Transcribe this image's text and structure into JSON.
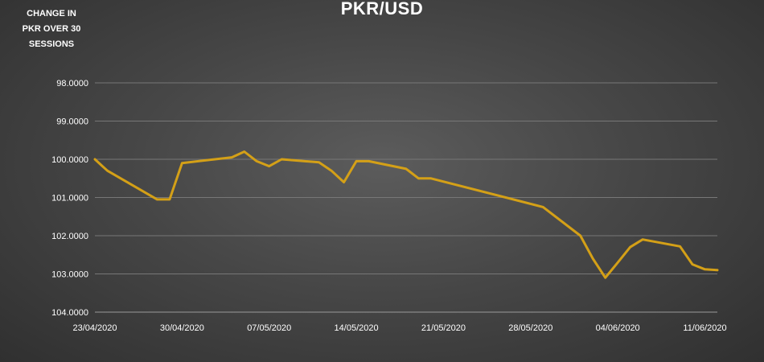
{
  "chart_data": {
    "type": "line",
    "title": "PKR/USD",
    "ylabel": "CHANGE IN\nPKR OVER 30\nSESSIONS",
    "xlabel": "",
    "y_reversed": true,
    "ylim": [
      98.0,
      104.0
    ],
    "y_ticks": [
      "98.0000",
      "99.0000",
      "100.0000",
      "101.0000",
      "102.0000",
      "103.0000",
      "104.0000"
    ],
    "x_range": [
      "2020-04-23",
      "2020-06-12"
    ],
    "x_ticks": [
      {
        "date": "2020-04-23",
        "label": "23/04/2020"
      },
      {
        "date": "2020-04-30",
        "label": "30/04/2020"
      },
      {
        "date": "2020-05-07",
        "label": "07/05/2020"
      },
      {
        "date": "2020-05-14",
        "label": "14/05/2020"
      },
      {
        "date": "2020-05-21",
        "label": "21/05/2020"
      },
      {
        "date": "2020-05-28",
        "label": "28/05/2020"
      },
      {
        "date": "2020-06-04",
        "label": "04/06/2020"
      },
      {
        "date": "2020-06-11",
        "label": "11/06/2020"
      }
    ],
    "grid": "horizontal",
    "series": [
      {
        "color": "#d4a017",
        "points": [
          {
            "x": "2020-04-23",
            "y": 100.0
          },
          {
            "x": "2020-04-24",
            "y": 100.3
          },
          {
            "x": "2020-04-28",
            "y": 101.05
          },
          {
            "x": "2020-04-29",
            "y": 101.05
          },
          {
            "x": "2020-04-30",
            "y": 100.1
          },
          {
            "x": "2020-05-04",
            "y": 99.95
          },
          {
            "x": "2020-05-05",
            "y": 99.8
          },
          {
            "x": "2020-05-06",
            "y": 100.05
          },
          {
            "x": "2020-05-07",
            "y": 100.18
          },
          {
            "x": "2020-05-08",
            "y": 100.0
          },
          {
            "x": "2020-05-11",
            "y": 100.08
          },
          {
            "x": "2020-05-12",
            "y": 100.3
          },
          {
            "x": "2020-05-13",
            "y": 100.6
          },
          {
            "x": "2020-05-14",
            "y": 100.05
          },
          {
            "x": "2020-05-15",
            "y": 100.05
          },
          {
            "x": "2020-05-18",
            "y": 100.25
          },
          {
            "x": "2020-05-19",
            "y": 100.5
          },
          {
            "x": "2020-05-20",
            "y": 100.5
          },
          {
            "x": "2020-05-29",
            "y": 101.25
          },
          {
            "x": "2020-06-01",
            "y": 102.0
          },
          {
            "x": "2020-06-02",
            "y": 102.6
          },
          {
            "x": "2020-06-03",
            "y": 103.1
          },
          {
            "x": "2020-06-04",
            "y": 102.7
          },
          {
            "x": "2020-06-05",
            "y": 102.3
          },
          {
            "x": "2020-06-06",
            "y": 102.1
          },
          {
            "x": "2020-06-09",
            "y": 102.28
          },
          {
            "x": "2020-06-10",
            "y": 102.75
          },
          {
            "x": "2020-06-11",
            "y": 102.88
          },
          {
            "x": "2020-06-12",
            "y": 102.9
          }
        ]
      }
    ]
  }
}
